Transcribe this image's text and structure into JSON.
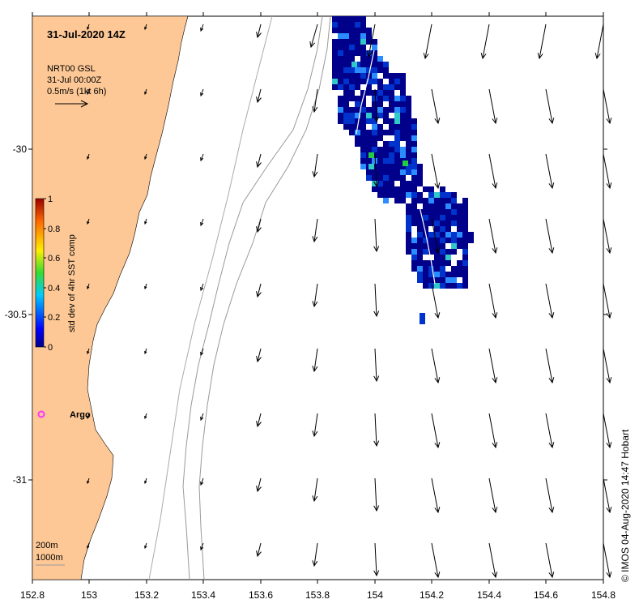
{
  "title": "31-Jul-2020 14Z",
  "current_info": {
    "line1": "NRT00 GSL",
    "line2": "31-Jul 00:00Z",
    "line3": "0.5m/s (1kt 6h)"
  },
  "colorbar": {
    "label": "std dev of 4hr SST comp",
    "ticks": [
      "1",
      "0.8",
      "0.6",
      "0.4",
      "0.2",
      "0"
    ]
  },
  "x_ticks": [
    "152.8",
    "153",
    "153.2",
    "153.4",
    "153.6",
    "153.8",
    "154",
    "154.2",
    "154.4",
    "154.6",
    "154.8"
  ],
  "y_ticks": [
    "-30",
    "-30.5",
    "-31"
  ],
  "argo_label": "Argo",
  "isobath_legend": [
    "200m",
    "1000m"
  ],
  "credit": "© IMOS 04-Aug-2020 14:47 Hobart",
  "colors": {
    "land": "#fdc896",
    "argo": "#ff33ff",
    "sst_dark": "#00008b",
    "sst_mid": "#0033cc",
    "sst_light": "#2a8cff",
    "sst_cyan": "#30c8c8",
    "sst_green": "#22cc44"
  }
}
